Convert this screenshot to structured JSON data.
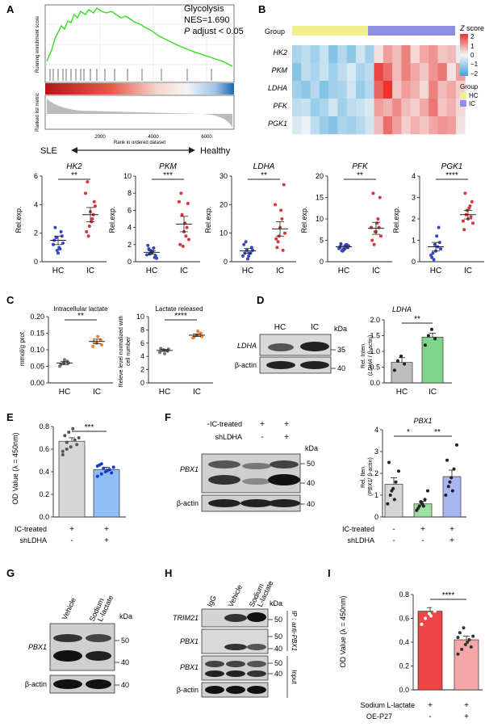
{
  "panels": {
    "A": {
      "letter": "A",
      "ylabel_top": "Running enrichment score",
      "ylabel_bottom": "Ranked list metric",
      "gene_set": "Glycolysis",
      "nes": "NES=1.690",
      "padj_p": "P",
      "padj_rest": " adjust < 0.05",
      "xaxis_title": "Rank in ordered dataset",
      "xticks": [
        "2000",
        "4000",
        "6000"
      ],
      "left_label": "SLE",
      "right_label": "Healthy"
    },
    "B": {
      "letter": "B",
      "group_label": "Group",
      "genes": [
        "HK2",
        "PKM",
        "LDHA",
        "PFK",
        "PGK1"
      ],
      "zscore_title_z": "Z",
      "zscore_title_rest": " score",
      "zscore_ticks": [
        "2",
        "1",
        "0",
        "−1",
        "−2"
      ],
      "legend_group_title": "Group",
      "legend_groups": [
        "HC",
        "IC"
      ],
      "colors": {
        "hc": "#eef08a",
        "ic": "#8f8fe6",
        "high": "#e8332e",
        "mid": "#f5f5f5",
        "low": "#3aa3dd"
      }
    },
    "row2": {
      "ylabel": "Rel.exp.",
      "groups": [
        "HC",
        "IC"
      ],
      "plots": [
        {
          "gene": "HK2",
          "sig": "**",
          "yticks": [
            "0",
            "2",
            "4",
            "6"
          ]
        },
        {
          "gene": "PKM",
          "sig": "***",
          "yticks": [
            "0",
            "2",
            "4",
            "6",
            "8",
            "10"
          ]
        },
        {
          "gene": "LDHA",
          "sig": "**",
          "yticks": [
            "0",
            "10",
            "20",
            "30"
          ]
        },
        {
          "gene": "PFK",
          "sig": "**",
          "yticks": [
            "0",
            "5",
            "10",
            "15",
            "20"
          ]
        },
        {
          "gene": "PGK1",
          "sig": "****",
          "yticks": [
            "0",
            "1",
            "2",
            "3",
            "4"
          ]
        }
      ]
    },
    "C": {
      "letter": "C",
      "plot1_title": "Intracellular lactate",
      "plot1_ylabel": "mmol/g prot",
      "plot1_sig": "**",
      "plot1_yticks": [
        "0.00",
        "0.05",
        "0.10",
        "0.15",
        "0.20"
      ],
      "plot2_title": "Lactate released",
      "plot2_ylabel_1": "Releve level normalized with",
      "plot2_ylabel_2": "cell number",
      "plot2_sig": "****",
      "plot2_yticks": [
        "0",
        "2",
        "4",
        "6",
        "8",
        "10"
      ],
      "groups": [
        "HC",
        "IC"
      ]
    },
    "D": {
      "letter": "D",
      "lanes": [
        "HC",
        "IC"
      ],
      "kda": "kDa",
      "marker_35": "35",
      "marker_40": "40",
      "row1": "LDHA",
      "row2": "β-actin",
      "bar_title": "LDHA",
      "bar_ylabel_1": "Rel. Inten.",
      "bar_ylabel_2a": "(",
      "bar_ylabel_2b": "LDHA",
      "bar_ylabel_2c": " / β-actin)",
      "bar_sig": "**",
      "bar_yticks": [
        "0.0",
        "0.5",
        "1.0",
        "1.5",
        "2.0"
      ],
      "groups": [
        "HC",
        "IC"
      ]
    },
    "E": {
      "letter": "E",
      "ylabel": "OD Value (λ = 450nm)",
      "yticks": [
        "0.0",
        "0.2",
        "0.4",
        "0.6",
        "0.8"
      ],
      "sig": "***",
      "row1": "IC-treated",
      "row2": "shLDHA",
      "row1_vals": [
        "+",
        "+"
      ],
      "row2_vals": [
        "-",
        "+"
      ]
    },
    "F": {
      "letter": "F",
      "row1": "IC-treated",
      "row2": "shLDHA",
      "row1_vals": [
        "-",
        "+",
        "+"
      ],
      "row2_vals": [
        "-",
        "-",
        "+"
      ],
      "kda": "kDa",
      "marker_50": "50",
      "marker_40": "40",
      "marker_40b": "40",
      "blot1": "PBX1",
      "blot2": "β-actin",
      "bar_title": "PBX1",
      "bar_ylabel_1": "Rel. Iten.",
      "bar_ylabel_2a": "(",
      "bar_ylabel_2b": "PBX1",
      "bar_ylabel_2c": "/ β-actin)",
      "bar_yticks": [
        "0",
        "1",
        "2",
        "3",
        "4"
      ],
      "sig1": "*",
      "sig2": "**",
      "bar_row1": "IC-treated",
      "bar_row2": "shLDHA",
      "bar_row1_vals": [
        "-",
        "+",
        "+"
      ],
      "bar_row2_vals": [
        "-",
        "-",
        "+"
      ]
    },
    "G": {
      "letter": "G",
      "lanes": [
        "Vehicle",
        "Sodium",
        "L-lactate"
      ],
      "kda": "kDa",
      "marker_50": "50",
      "marker_40": "40",
      "marker_40b": "40",
      "blot1": "PBX1",
      "blot2": "β-actin"
    },
    "H": {
      "letter": "H",
      "lanes": [
        "IgG",
        "Vehicle",
        "Sodium",
        "L-lactate"
      ],
      "kda": "kDa",
      "marker_50": "50",
      "marker_50b": "50",
      "marker_40": "40",
      "marker_50c": "50",
      "marker_40b": "40",
      "blot1": "TRIM21",
      "blot2": "PBX1",
      "blot3": "PBX1",
      "blot4": "β-actin",
      "ip_label_1": "IP : anti-",
      "ip_label_2": "PBX1",
      "input_label": "Input"
    },
    "I": {
      "letter": "I",
      "ylabel": "OD Value (λ = 450nm)",
      "yticks": [
        "0.0",
        "0.2",
        "0.4",
        "0.6",
        "0.8"
      ],
      "sig": "****",
      "row1": "Sodium L-lactate",
      "row2": "OE-P27",
      "row1_vals": [
        "+",
        "+"
      ],
      "row2_vals": [
        "-",
        "+"
      ]
    }
  }
}
